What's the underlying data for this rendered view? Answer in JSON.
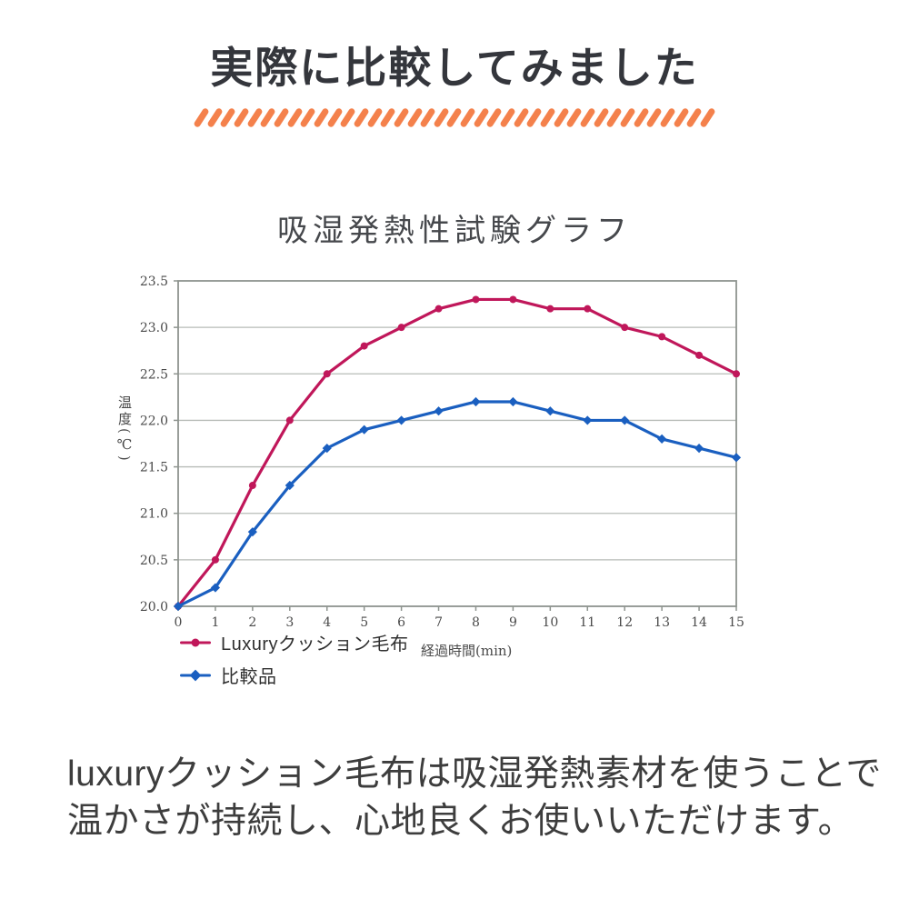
{
  "header": {
    "title": "実際に比較してみました",
    "divider": {
      "slash_count": 39,
      "color": "#f4814c"
    }
  },
  "chart_data": {
    "type": "line",
    "title": "吸湿発熱性試験グラフ",
    "xlabel": "経過時間(min)",
    "ylabel": "温度(℃)",
    "x": [
      0,
      1,
      2,
      3,
      4,
      5,
      6,
      7,
      8,
      9,
      10,
      11,
      12,
      13,
      14,
      15
    ],
    "xticks": [
      0,
      1,
      2,
      3,
      4,
      5,
      6,
      7,
      8,
      9,
      10,
      11,
      12,
      13,
      14,
      15
    ],
    "ylim": [
      20.0,
      23.5
    ],
    "yticks": [
      20.0,
      20.5,
      21.0,
      21.5,
      22.0,
      22.5,
      23.0,
      23.5
    ],
    "grid": "horizontal",
    "legend_position": "bottom-left",
    "series": [
      {
        "name": "Luxuryクッション毛布",
        "color": "#c0175a",
        "marker": "circle",
        "values": [
          20.0,
          20.5,
          21.3,
          22.0,
          22.5,
          22.8,
          23.0,
          23.2,
          23.3,
          23.3,
          23.2,
          23.2,
          23.0,
          22.9,
          22.7,
          22.5
        ]
      },
      {
        "name": "比較品",
        "color": "#1a5fc0",
        "marker": "diamond",
        "values": [
          20.0,
          20.2,
          20.8,
          21.3,
          21.7,
          21.9,
          22.0,
          22.1,
          22.2,
          22.2,
          22.1,
          22.0,
          22.0,
          21.8,
          21.7,
          21.6
        ]
      }
    ]
  },
  "description": {
    "line1": "luxuryクッション毛布は吸湿発熱素材を使うことで",
    "line2": "温かさが持続し、心地良くお使いいただけます。"
  }
}
